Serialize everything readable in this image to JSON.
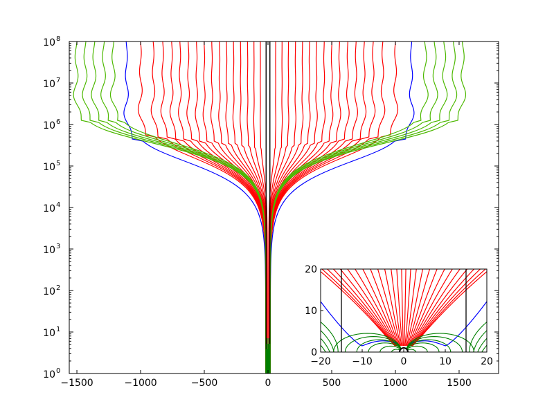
{
  "chart_data": [
    {
      "type": "line",
      "title": "",
      "xlabel": "",
      "ylabel": "",
      "xlim": [
        -1560,
        1810
      ],
      "ylim": [
        1,
        100000000
      ],
      "yscale": "log",
      "grid": false,
      "xticks": [
        -1500,
        -1000,
        -500,
        0,
        500,
        1000,
        1500
      ],
      "xtick_labels": [
        "−1500",
        "−1000",
        "−500",
        "0",
        "500",
        "1000",
        "1500"
      ],
      "yticks": [
        1,
        10,
        100,
        1000,
        10000,
        100000,
        1000000,
        10000000,
        100000000
      ],
      "ytick_labels": [
        {
          "base": "10",
          "exp": "0"
        },
        {
          "base": "10",
          "exp": "1"
        },
        {
          "base": "10",
          "exp": "2"
        },
        {
          "base": "10",
          "exp": "3"
        },
        {
          "base": "10",
          "exp": "4"
        },
        {
          "base": "10",
          "exp": "5"
        },
        {
          "base": "10",
          "exp": "6"
        },
        {
          "base": "10",
          "exp": "7"
        },
        {
          "base": "10",
          "exp": "8"
        }
      ],
      "colors": {
        "red": "#ff0000",
        "blue": "#0000ff",
        "green_light": "#4cb800",
        "green_dark": "#007f00",
        "black": "#000000"
      },
      "series": [
        {
          "color": "red",
          "top_x": [
            -1000,
            -900,
            -825,
            -755,
            -690,
            -625,
            -560,
            -500,
            -440,
            -380,
            -325,
            -270,
            -215,
            -160,
            -110,
            -60,
            60,
            110,
            160,
            215,
            270,
            325,
            380,
            440,
            500,
            560,
            625,
            690,
            755,
            825,
            900,
            1000
          ]
        },
        {
          "color": "blue",
          "top_x": [
            -1110,
            1125
          ]
        },
        {
          "color": "green_light",
          "top_x": [
            -1505,
            -1435,
            -1365,
            -1290,
            -1215,
            1235,
            1310,
            1385,
            1460,
            1530
          ]
        },
        {
          "color": "black",
          "top_x": [
            -15,
            15
          ]
        }
      ]
    },
    {
      "type": "line",
      "title": "",
      "xlim": [
        -20,
        20
      ],
      "ylim": [
        0,
        20
      ],
      "grid": false,
      "xticks": [
        -20,
        -10,
        0,
        10,
        20
      ],
      "xtick_labels": [
        "−20",
        "−10",
        "0",
        "10",
        "20"
      ],
      "yticks": [
        0,
        10,
        20
      ],
      "ytick_labels": [
        "0",
        "10",
        "20"
      ],
      "vertical_lines_x": [
        -15,
        15
      ],
      "blue_separatrix_feet_x": [
        -10.5,
        10.5
      ],
      "red_rays": 28,
      "green_arcs_per_side": 6
    }
  ]
}
